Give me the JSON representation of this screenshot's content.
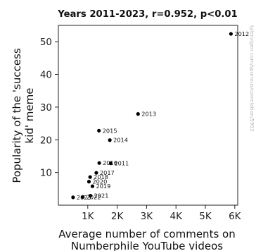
{
  "chart_data": {
    "type": "scatter",
    "title": "Years 2011-2023, r=0.952, p<0.01",
    "xlabel_lines": [
      "Average number of comments on",
      "Numberphile YouTube videos"
    ],
    "ylabel_lines": [
      "Popularity of the 'success",
      "kid' meme"
    ],
    "xlim": [
      0,
      6100
    ],
    "ylim": [
      0,
      55
    ],
    "x_ticks": [
      1000,
      2000,
      3000,
      4000,
      5000,
      6000
    ],
    "x_tick_labels": [
      "1K",
      "2K",
      "3K",
      "4K",
      "5K",
      "6K"
    ],
    "y_ticks": [
      10,
      20,
      30,
      40,
      50
    ],
    "y_tick_labels": [
      "10",
      "20",
      "30",
      "40",
      "50"
    ],
    "grid": false,
    "point_color": "#000000",
    "points": [
      {
        "label": "2011",
        "x": 1780,
        "y": 12.8
      },
      {
        "label": "2012",
        "x": 5870,
        "y": 52.4
      },
      {
        "label": "2013",
        "x": 2710,
        "y": 27.9
      },
      {
        "label": "2014",
        "x": 1750,
        "y": 19.9
      },
      {
        "label": "2015",
        "x": 1380,
        "y": 22.8
      },
      {
        "label": "2016",
        "x": 1390,
        "y": 12.9
      },
      {
        "label": "2017",
        "x": 1290,
        "y": 9.9
      },
      {
        "label": "2018",
        "x": 1080,
        "y": 8.6
      },
      {
        "label": "2019",
        "x": 1160,
        "y": 5.8
      },
      {
        "label": "2020",
        "x": 1040,
        "y": 7.2
      },
      {
        "label": "2021",
        "x": 1090,
        "y": 2.9
      },
      {
        "label": "2022",
        "x": 830,
        "y": 2.5
      },
      {
        "label": "2023",
        "x": 500,
        "y": 2.4
      }
    ],
    "watermark": "tylervigen.com/spurious/correlation/5953"
  }
}
